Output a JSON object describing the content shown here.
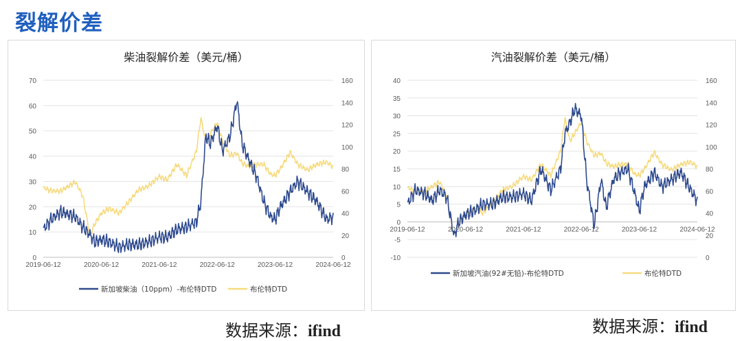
{
  "page_title": "裂解价差",
  "sources": [
    {
      "label": "数据来源：",
      "value": "ifind"
    },
    {
      "label": "数据来源：",
      "value": "ifind"
    }
  ],
  "colors": {
    "title": "#1f5fbf",
    "spread": "#2e4a8e",
    "brent": "#f6da7e"
  },
  "chart_data": [
    {
      "type": "line",
      "title": "柴油裂解价差（美元/桶）",
      "xlabel": "",
      "ylabel": "",
      "x_tick_labels": [
        "2019-06-12",
        "2020-06-12",
        "2021-06-12",
        "2022-06-12",
        "2023-06-12",
        "2024-06-12"
      ],
      "x_range": [
        "2019-06-12",
        "2024-06-12"
      ],
      "y_left": {
        "range": [
          0,
          70
        ],
        "ticks": [
          0,
          10,
          20,
          30,
          40,
          50,
          60,
          70
        ]
      },
      "y_right": {
        "range": [
          0,
          160
        ],
        "ticks": [
          0,
          20,
          40,
          60,
          80,
          100,
          120,
          140,
          160
        ]
      },
      "legend_position": "bottom",
      "grid": "horizontal",
      "series": [
        {
          "name": "新加坡柴油（10ppm）-布伦特DTD",
          "axis": "left",
          "color": "#2e4a8e",
          "points": [
            [
              "2019-06-12",
              11
            ],
            [
              "2019-08-01",
              15
            ],
            [
              "2019-10-01",
              18
            ],
            [
              "2019-11-15",
              17
            ],
            [
              "2020-01-01",
              16
            ],
            [
              "2020-02-15",
              12
            ],
            [
              "2020-04-01",
              9
            ],
            [
              "2020-05-01",
              6
            ],
            [
              "2020-06-12",
              7
            ],
            [
              "2020-08-01",
              6
            ],
            [
              "2020-10-01",
              4
            ],
            [
              "2020-12-01",
              5
            ],
            [
              "2021-02-01",
              5
            ],
            [
              "2021-04-01",
              6
            ],
            [
              "2021-06-12",
              8
            ],
            [
              "2021-08-01",
              8
            ],
            [
              "2021-10-01",
              11
            ],
            [
              "2021-12-01",
              12
            ],
            [
              "2022-02-01",
              14
            ],
            [
              "2022-03-01",
              22
            ],
            [
              "2022-04-01",
              48
            ],
            [
              "2022-05-01",
              45
            ],
            [
              "2022-06-12",
              52
            ],
            [
              "2022-07-15",
              42
            ],
            [
              "2022-09-01",
              48
            ],
            [
              "2022-10-15",
              62
            ],
            [
              "2022-11-15",
              45
            ],
            [
              "2023-01-01",
              38
            ],
            [
              "2023-02-15",
              32
            ],
            [
              "2023-04-01",
              22
            ],
            [
              "2023-05-15",
              16
            ],
            [
              "2023-06-12",
              15
            ],
            [
              "2023-07-15",
              20
            ],
            [
              "2023-09-15",
              26
            ],
            [
              "2023-11-01",
              30
            ],
            [
              "2024-01-01",
              26
            ],
            [
              "2024-03-01",
              22
            ],
            [
              "2024-05-01",
              15
            ],
            [
              "2024-06-12",
              16
            ]
          ]
        },
        {
          "name": "布伦特DTD",
          "axis": "right",
          "color": "#f6da7e",
          "points": [
            [
              "2019-06-12",
              63
            ],
            [
              "2019-08-01",
              60
            ],
            [
              "2019-10-01",
              60
            ],
            [
              "2019-11-15",
              64
            ],
            [
              "2020-01-01",
              68
            ],
            [
              "2020-02-15",
              56
            ],
            [
              "2020-04-01",
              20
            ],
            [
              "2020-05-01",
              30
            ],
            [
              "2020-06-12",
              40
            ],
            [
              "2020-08-01",
              44
            ],
            [
              "2020-10-01",
              40
            ],
            [
              "2020-12-01",
              50
            ],
            [
              "2021-02-01",
              61
            ],
            [
              "2021-04-01",
              64
            ],
            [
              "2021-06-12",
              73
            ],
            [
              "2021-08-01",
              70
            ],
            [
              "2021-10-01",
              84
            ],
            [
              "2021-12-01",
              74
            ],
            [
              "2022-02-01",
              96
            ],
            [
              "2022-03-01",
              126
            ],
            [
              "2022-04-01",
              105
            ],
            [
              "2022-05-01",
              112
            ],
            [
              "2022-06-12",
              122
            ],
            [
              "2022-07-15",
              105
            ],
            [
              "2022-09-01",
              92
            ],
            [
              "2022-10-15",
              94
            ],
            [
              "2022-11-15",
              85
            ],
            [
              "2023-01-01",
              82
            ],
            [
              "2023-02-15",
              84
            ],
            [
              "2023-04-01",
              84
            ],
            [
              "2023-05-15",
              75
            ],
            [
              "2023-06-12",
              74
            ],
            [
              "2023-07-15",
              80
            ],
            [
              "2023-09-15",
              95
            ],
            [
              "2023-11-01",
              84
            ],
            [
              "2024-01-01",
              79
            ],
            [
              "2024-03-01",
              84
            ],
            [
              "2024-05-01",
              86
            ],
            [
              "2024-06-12",
              82
            ]
          ]
        }
      ]
    },
    {
      "type": "line",
      "title": "汽油裂解价差（美元/桶）",
      "xlabel": "",
      "ylabel": "",
      "x_tick_labels": [
        "2019-06-12",
        "2020-06-12",
        "2021-06-12",
        "2022-06-12",
        "2023-06-12",
        "2024-06-12"
      ],
      "x_range": [
        "2019-06-12",
        "2024-06-12"
      ],
      "y_left": {
        "range": [
          -10,
          40
        ],
        "ticks": [
          -10,
          -5,
          0,
          5,
          10,
          15,
          20,
          25,
          30,
          35,
          40
        ]
      },
      "y_right": {
        "range": [
          0,
          160
        ],
        "ticks": [
          0,
          20,
          40,
          60,
          80,
          100,
          120,
          140,
          160
        ]
      },
      "legend_position": "bottom",
      "grid": "horizontal",
      "series": [
        {
          "name": "新加坡汽油(92#无铅)-布伦特DTD",
          "axis": "left",
          "color": "#2e4a8e",
          "points": [
            [
              "2019-06-12",
              5
            ],
            [
              "2019-08-01",
              9
            ],
            [
              "2019-10-01",
              8
            ],
            [
              "2019-11-15",
              6
            ],
            [
              "2020-01-01",
              9
            ],
            [
              "2020-02-15",
              7
            ],
            [
              "2020-04-01",
              -4
            ],
            [
              "2020-05-01",
              0
            ],
            [
              "2020-06-12",
              2
            ],
            [
              "2020-08-01",
              3
            ],
            [
              "2020-10-01",
              5
            ],
            [
              "2020-12-01",
              5
            ],
            [
              "2021-02-01",
              7
            ],
            [
              "2021-04-01",
              7
            ],
            [
              "2021-06-12",
              8
            ],
            [
              "2021-08-01",
              6
            ],
            [
              "2021-10-01",
              15
            ],
            [
              "2021-12-01",
              9
            ],
            [
              "2022-02-01",
              15
            ],
            [
              "2022-03-01",
              25
            ],
            [
              "2022-04-01",
              28
            ],
            [
              "2022-05-01",
              32
            ],
            [
              "2022-06-12",
              30
            ],
            [
              "2022-07-15",
              12
            ],
            [
              "2022-09-01",
              -1
            ],
            [
              "2022-10-15",
              12
            ],
            [
              "2022-11-15",
              4
            ],
            [
              "2023-01-01",
              12
            ],
            [
              "2023-02-15",
              14
            ],
            [
              "2023-04-01",
              15
            ],
            [
              "2023-05-15",
              8
            ],
            [
              "2023-06-12",
              3
            ],
            [
              "2023-07-15",
              10
            ],
            [
              "2023-09-15",
              14
            ],
            [
              "2023-11-01",
              10
            ],
            [
              "2024-01-01",
              12
            ],
            [
              "2024-03-01",
              14
            ],
            [
              "2024-05-01",
              9
            ],
            [
              "2024-06-12",
              6
            ]
          ]
        },
        {
          "name": "布伦特DTD",
          "axis": "right",
          "color": "#f6da7e",
          "points": [
            [
              "2019-06-12",
              63
            ],
            [
              "2019-08-01",
              60
            ],
            [
              "2019-10-01",
              60
            ],
            [
              "2019-11-15",
              64
            ],
            [
              "2020-01-01",
              68
            ],
            [
              "2020-02-15",
              56
            ],
            [
              "2020-04-01",
              20
            ],
            [
              "2020-05-01",
              30
            ],
            [
              "2020-06-12",
              40
            ],
            [
              "2020-08-01",
              44
            ],
            [
              "2020-10-01",
              40
            ],
            [
              "2020-12-01",
              50
            ],
            [
              "2021-02-01",
              61
            ],
            [
              "2021-04-01",
              64
            ],
            [
              "2021-06-12",
              73
            ],
            [
              "2021-08-01",
              70
            ],
            [
              "2021-10-01",
              84
            ],
            [
              "2021-12-01",
              74
            ],
            [
              "2022-02-01",
              96
            ],
            [
              "2022-03-01",
              126
            ],
            [
              "2022-04-01",
              105
            ],
            [
              "2022-05-01",
              112
            ],
            [
              "2022-06-12",
              122
            ],
            [
              "2022-07-15",
              105
            ],
            [
              "2022-09-01",
              92
            ],
            [
              "2022-10-15",
              94
            ],
            [
              "2022-11-15",
              85
            ],
            [
              "2023-01-01",
              82
            ],
            [
              "2023-02-15",
              84
            ],
            [
              "2023-04-01",
              84
            ],
            [
              "2023-05-15",
              75
            ],
            [
              "2023-06-12",
              74
            ],
            [
              "2023-07-15",
              80
            ],
            [
              "2023-09-15",
              95
            ],
            [
              "2023-11-01",
              84
            ],
            [
              "2024-01-01",
              79
            ],
            [
              "2024-03-01",
              84
            ],
            [
              "2024-05-01",
              86
            ],
            [
              "2024-06-12",
              82
            ]
          ]
        }
      ]
    }
  ]
}
